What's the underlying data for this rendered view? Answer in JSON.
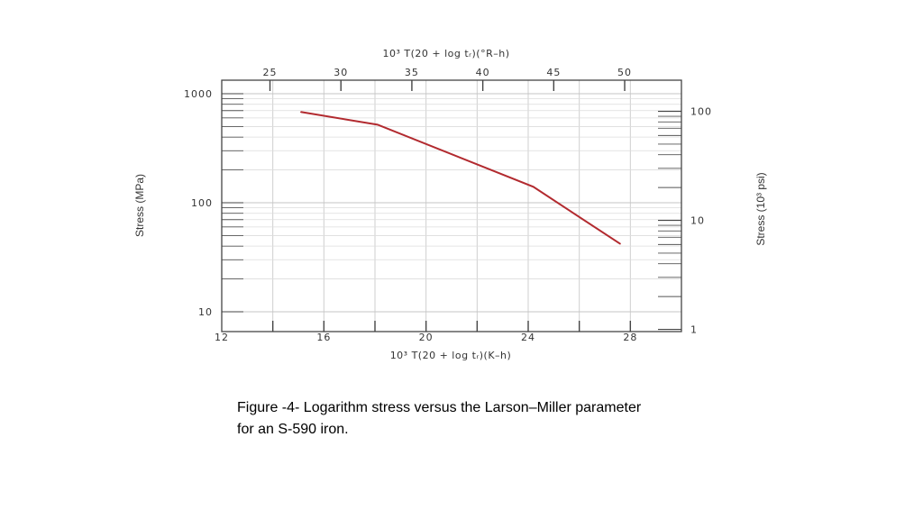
{
  "chart_data": {
    "type": "line",
    "top_axis_label": "10³ T(20 + log tᵣ)(°R–h)",
    "bottom_axis_label": "10³ T(20 + log tᵣ)(K–h)",
    "left_axis_label": "Stress (MPa)",
    "right_axis_label": "Stress (10³ psi)",
    "xlim": [
      12,
      30
    ],
    "ylim": [
      10,
      1000
    ],
    "yscale": "log",
    "bottom_ticks": [
      "12",
      "16",
      "20",
      "24",
      "28"
    ],
    "bottom_minor_ticks": [
      14,
      18,
      22,
      26
    ],
    "top_ticks": [
      "25",
      "30",
      "35",
      "40",
      "45",
      "50"
    ],
    "left_ticks": [
      "10",
      "100",
      "1000"
    ],
    "right_ticks": [
      "1",
      "10",
      "100"
    ],
    "grid": true,
    "line_color": "#b22a2f",
    "series": [
      {
        "x": [
          15.1,
          18.1,
          24.2,
          27.6
        ],
        "y": [
          680,
          520,
          140,
          42
        ]
      }
    ]
  },
  "caption": {
    "line1": "Figure -4- Logarithm stress versus the Larson–Miller parameter",
    "line2": "for an S-590 iron."
  }
}
